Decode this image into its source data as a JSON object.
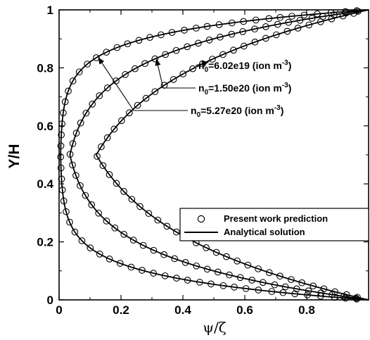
{
  "chart_data": {
    "type": "line",
    "title": "",
    "xlabel": "ψ/ζ",
    "ylabel": "Y/H",
    "xlim": [
      0,
      1
    ],
    "ylim": [
      0,
      1
    ],
    "xticks": [
      "0",
      "0.2",
      "0.4",
      "0.6",
      "0.8"
    ],
    "yticks": [
      "0",
      "0.2",
      "0.4",
      "0.6",
      "0.8",
      "1"
    ],
    "grid": false,
    "legend_position": "lower-right",
    "legend": {
      "markers_label": "Present work prediction",
      "line_label": "Analytical solution"
    },
    "series": [
      {
        "name": "n0=6.02e19 (ion m-3)",
        "annotation": {
          "base": "n",
          "sub": "0",
          "mid": "=6.02e19 (ion m",
          "sup": "-3",
          "end": ")"
        },
        "min_x": 0.12,
        "sharpness": 4.05
      },
      {
        "name": "n0=1.50e20 (ion m-3)",
        "annotation": {
          "base": "n",
          "sub": "0",
          "mid": "=1.50e20 (ion m",
          "sup": "-3",
          "end": ")"
        },
        "min_x": 0.035,
        "sharpness": 7.0
      },
      {
        "name": "n0=5.27e20 (ion m-3)",
        "annotation": {
          "base": "n",
          "sub": "0",
          "mid": "=5.27e20 (ion m",
          "sup": "-3",
          "end": ")"
        },
        "min_x": 0.005,
        "sharpness": 13.0
      }
    ]
  }
}
